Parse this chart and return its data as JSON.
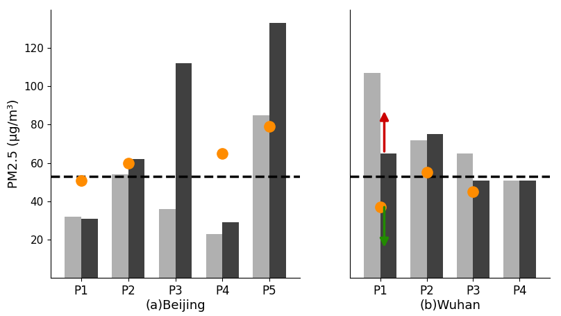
{
  "beijing": {
    "categories": [
      "P1",
      "P2",
      "P3",
      "P4",
      "P5"
    ],
    "light_bars": [
      32,
      54,
      36,
      23,
      85
    ],
    "dark_bars": [
      31,
      62,
      112,
      29,
      133
    ],
    "orange_dots": [
      51,
      60,
      null,
      65,
      79
    ]
  },
  "wuhan": {
    "categories": [
      "P1",
      "P2",
      "P3",
      "P4"
    ],
    "light_bars": [
      107,
      72,
      65,
      51
    ],
    "dark_bars": [
      65,
      75,
      51,
      51
    ],
    "orange_dots": [
      37,
      55,
      45,
      null
    ]
  },
  "dashed_line_y": 53,
  "ylim": [
    0,
    140
  ],
  "yticks": [
    20,
    40,
    60,
    80,
    100,
    120
  ],
  "ylabel": "PM2.5 (μg/m³)",
  "light_bar_color": "#b0b0b0",
  "dark_bar_color": "#404040",
  "orange_dot_color": "#FF8C00",
  "dashed_line_color": "#000000",
  "arrow_up_color": "#CC0000",
  "arrow_down_color": "#228B00",
  "label_beijing": "(a)Beijing",
  "label_wuhan": "(b)Wuhan",
  "bar_width": 0.35,
  "bar_gap": 1.0
}
